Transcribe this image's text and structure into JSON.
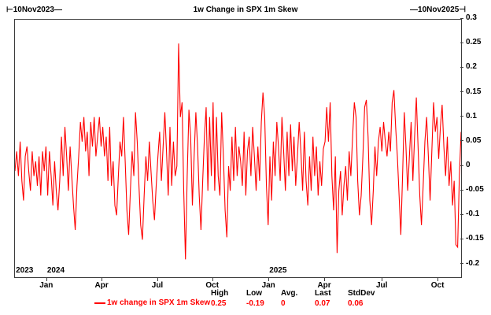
{
  "header": {
    "range_start": "⊢10Nov2023—",
    "title": "1w Change in SPX 1m Skew",
    "range_end": "—10Nov2025⊣"
  },
  "legend": {
    "series_label": "1w change in SPX 1m Skew",
    "series_color": "#ff0000",
    "stats": [
      {
        "name": "High",
        "value": "0.25"
      },
      {
        "name": "Low",
        "value": "-0.19"
      },
      {
        "name": "Avg.",
        "value": "0"
      },
      {
        "name": "Last",
        "value": "0.07"
      },
      {
        "name": "StdDev",
        "value": "0.06"
      }
    ]
  },
  "chart_data": {
    "type": "line",
    "title": "1w Change in SPX 1m Skew",
    "series_name": "1w change in SPX 1m Skew",
    "line_color": "#ff0000",
    "x_start": "10Nov2023",
    "x_end": "10Nov2025",
    "ylim": [
      -0.2265,
      0.2985
    ],
    "grid": false,
    "legend_position": "bottom",
    "stats": {
      "high": 0.25,
      "low": -0.19,
      "avg": 0,
      "last": 0.07,
      "stddev": 0.06
    },
    "y_ticks": [
      {
        "label": "0.3",
        "value": 0.3
      },
      {
        "label": "0.25",
        "value": 0.25
      },
      {
        "label": "0.2",
        "value": 0.2
      },
      {
        "label": "0.15",
        "value": 0.15
      },
      {
        "label": "0.1",
        "value": 0.1
      },
      {
        "label": "0.05",
        "value": 0.05
      },
      {
        "label": "0",
        "value": 0
      },
      {
        "label": "-0.05",
        "value": -0.05
      },
      {
        "label": "-0.1",
        "value": -0.1
      },
      {
        "label": "-0.15",
        "value": -0.15
      },
      {
        "label": "-0.2",
        "value": -0.2
      }
    ],
    "x_ticks": [
      {
        "label": "Jan",
        "pos": 0.072
      },
      {
        "label": "Apr",
        "pos": 0.196
      },
      {
        "label": "Jul",
        "pos": 0.321
      },
      {
        "label": "Oct",
        "pos": 0.444
      },
      {
        "label": "Jan",
        "pos": 0.57
      },
      {
        "label": "Apr",
        "pos": 0.695
      },
      {
        "label": "Jul",
        "pos": 0.824
      },
      {
        "label": "Oct",
        "pos": 0.949
      }
    ],
    "year_labels": [
      {
        "label": "2023",
        "pos": 0.002
      },
      {
        "label": "2024",
        "pos": 0.072
      },
      {
        "label": "2025",
        "pos": 0.57
      }
    ],
    "values": [
      -0.01,
      0.03,
      -0.02,
      0.05,
      -0.03,
      -0.07,
      0.02,
      0.04,
      -0.01,
      -0.05,
      0.03,
      -0.02,
      0.01,
      -0.04,
      0.02,
      -0.06,
      0.03,
      -0.01,
      0.04,
      -0.06,
      0.03,
      -0.02,
      -0.08,
      0.01,
      -0.05,
      -0.09,
      -0.03,
      0.06,
      -0.02,
      0.08,
      0.02,
      -0.05,
      0.04,
      -0.02,
      -0.08,
      -0.13,
      -0.04,
      0.02,
      0.09,
      0.05,
      0.1,
      0.03,
      0.07,
      -0.02,
      0.09,
      0.04,
      0.1,
      0.02,
      0.06,
      0.1,
      0.04,
      0.08,
      0.02,
      0.06,
      -0.03,
      0.08,
      -0.04,
      0.01,
      -0.08,
      -0.1,
      -0.02,
      0.05,
      0.02,
      0.1,
      0.01,
      -0.09,
      -0.14,
      -0.05,
      0.03,
      -0.02,
      0.11,
      0.05,
      -0.04,
      -0.12,
      -0.15,
      -0.06,
      0.02,
      -0.03,
      0.05,
      -0.01,
      -0.07,
      -0.11,
      -0.04,
      0.02,
      0.07,
      -0.03,
      0.04,
      0.11,
      0.03,
      -0.06,
      0.08,
      -0.04,
      0.05,
      -0.02,
      0.0,
      0.25,
      0.1,
      0.13,
      -0.05,
      -0.19,
      -0.02,
      0.115,
      0.06,
      -0.08,
      0.02,
      0.11,
      0.04,
      -0.06,
      -0.13,
      -0.03,
      0.06,
      0.12,
      -0.05,
      0.1,
      -0.02,
      0.13,
      -0.05,
      0.1,
      -0.02,
      -0.06,
      0.11,
      0.02,
      -0.09,
      -0.145,
      0.0,
      -0.05,
      0.06,
      -0.03,
      0.08,
      -0.02,
      0.04,
      0.01,
      -0.04,
      0.07,
      -0.06,
      0.03,
      0.06,
      -0.02,
      0.08,
      0.02,
      -0.05,
      0.04,
      -0.03,
      0.09,
      0.15,
      0.1,
      -0.04,
      -0.12,
      0.02,
      -0.07,
      0.05,
      -0.02,
      0.09,
      0.04,
      -0.03,
      0.1,
      0.03,
      -0.05,
      0.07,
      -0.02,
      0.085,
      -0.01,
      0.06,
      -0.04,
      0.02,
      0.09,
      0.03,
      -0.05,
      0.07,
      -0.03,
      -0.08,
      0.02,
      -0.05,
      0.06,
      -0.02,
      0.04,
      -0.06,
      0.01,
      -0.04,
      0.035,
      0.05,
      0.12,
      0.05,
      0.13,
      -0.02,
      -0.09,
      0.02,
      -0.177,
      -0.05,
      -0.01,
      -0.1,
      -0.04,
      0.0,
      -0.07,
      0.03,
      -0.02,
      0.06,
      0.13,
      0.1,
      -0.03,
      -0.1,
      -0.06,
      0.02,
      0.12,
      0.135,
      0.06,
      -0.07,
      -0.12,
      -0.05,
      0.04,
      -0.02,
      0.05,
      0.08,
      0.03,
      0.09,
      0.05,
      0.02,
      0.07,
      0.03,
      0.13,
      0.155,
      0.08,
      0.02,
      -0.06,
      -0.14,
      -0.02,
      0.11,
      0.04,
      -0.05,
      0.02,
      0.09,
      -0.03,
      0.06,
      0.14,
      0.04,
      -0.06,
      -0.12,
      -0.04,
      0.05,
      0.1,
      0.02,
      -0.07,
      0.03,
      0.13,
      0.07,
      0.1,
      0.015,
      0.08,
      0.125,
      0.04,
      -0.02,
      0.06,
      -0.04,
      0.01,
      -0.08,
      -0.03,
      -0.16,
      -0.165,
      -0.02,
      0.07
    ]
  }
}
